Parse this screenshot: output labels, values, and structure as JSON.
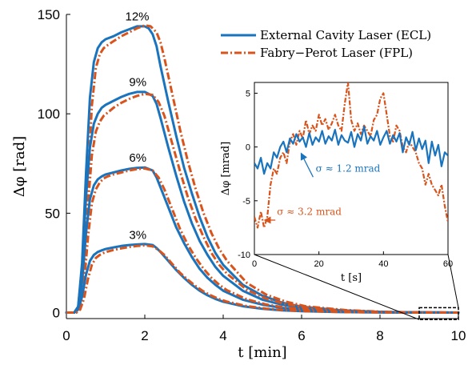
{
  "colors": {
    "ecl": "#1a73bd",
    "fpl": "#d9541c",
    "axis": "#000000",
    "box": "#000000"
  },
  "chart_data": [
    {
      "type": "line",
      "xlabel": "t [min]",
      "ylabel": "Δφ [rad]",
      "xlim": [
        0,
        10
      ],
      "ylim": [
        -3,
        150
      ],
      "xticks": [
        0,
        2,
        4,
        6,
        8,
        10
      ],
      "yticks": [
        0,
        50,
        100,
        150
      ],
      "grid": false,
      "legend_position": "top-right",
      "legend": [
        {
          "name": "External Cavity Laser (ECL)",
          "style": "solid",
          "color": "#1a73bd"
        },
        {
          "name": "Fabry−Perot Laser (FPL)",
          "style": "dash-dot",
          "color": "#d9541c"
        }
      ],
      "annotations": [
        {
          "text": "12%",
          "x": 1.5,
          "y": 147
        },
        {
          "text": "9%",
          "x": 1.6,
          "y": 114
        },
        {
          "text": "6%",
          "x": 1.6,
          "y": 76
        },
        {
          "text": "3%",
          "x": 1.6,
          "y": 37
        }
      ],
      "series": [
        {
          "laser": "ECL",
          "concentration": "12%",
          "x": [
            0,
            0.2,
            0.3,
            0.4,
            0.5,
            0.6,
            0.7,
            0.8,
            0.9,
            1.0,
            1.2,
            1.4,
            1.6,
            1.8,
            2.0,
            2.1,
            2.2,
            2.3,
            2.4,
            2.6,
            2.8,
            3.0,
            3.2,
            3.4,
            3.6,
            3.8,
            4.0,
            4.5,
            5.0,
            5.5,
            6.0,
            7.0,
            8.0,
            9.0,
            10.0
          ],
          "y": [
            0,
            0,
            3,
            25,
            70,
            108,
            126,
            133,
            136,
            137.5,
            139,
            141,
            142.5,
            144,
            144,
            143,
            140,
            134,
            124,
            106,
            89,
            73,
            60,
            48,
            38,
            30,
            24,
            14,
            8.5,
            5,
            3,
            1.2,
            0.4,
            0.1,
            0
          ]
        },
        {
          "laser": "FPL",
          "concentration": "12%",
          "x": [
            0,
            0.25,
            0.35,
            0.45,
            0.55,
            0.65,
            0.75,
            0.85,
            0.95,
            1.05,
            1.2,
            1.4,
            1.6,
            1.8,
            2.0,
            2.15,
            2.3,
            2.4,
            2.5,
            2.7,
            2.9,
            3.1,
            3.3,
            3.5,
            3.7,
            3.9,
            4.1,
            4.6,
            5.1,
            5.6,
            6.1,
            7.1,
            8.1,
            9.1,
            10.0
          ],
          "y": [
            0,
            0,
            3,
            22,
            65,
            104,
            123,
            130,
            133,
            134.5,
            136.5,
            139,
            141,
            143,
            144.5,
            144,
            141,
            136,
            128,
            110,
            92,
            76,
            62,
            50,
            40,
            32,
            26,
            15,
            9,
            5.5,
            3.2,
            1.3,
            0.4,
            0.1,
            0
          ]
        },
        {
          "laser": "ECL",
          "concentration": "9%",
          "x": [
            0,
            0.2,
            0.3,
            0.4,
            0.5,
            0.6,
            0.7,
            0.8,
            0.9,
            1.0,
            1.2,
            1.4,
            1.6,
            1.8,
            2.0,
            2.2,
            2.3,
            2.4,
            2.6,
            2.8,
            3.0,
            3.2,
            3.4,
            3.6,
            3.8,
            4.0,
            4.5,
            5.0,
            5.5,
            6.0,
            7.0,
            8.0,
            9.0,
            10.0
          ],
          "y": [
            0,
            0,
            3,
            22,
            58,
            83,
            95,
            100,
            103,
            104.5,
            106.5,
            108.5,
            110,
            111,
            111,
            109,
            105,
            98,
            83,
            69,
            56,
            45,
            36,
            29,
            23,
            18.5,
            11,
            6.5,
            4,
            2.4,
            0.9,
            0.3,
            0.1,
            0
          ]
        },
        {
          "laser": "FPL",
          "concentration": "9%",
          "x": [
            0,
            0.25,
            0.35,
            0.45,
            0.55,
            0.65,
            0.75,
            0.85,
            0.95,
            1.05,
            1.2,
            1.4,
            1.6,
            1.8,
            2.0,
            2.2,
            2.35,
            2.5,
            2.7,
            2.9,
            3.1,
            3.3,
            3.5,
            3.7,
            3.9,
            4.1,
            4.6,
            5.1,
            5.6,
            6.1,
            7.1,
            8.1,
            9.1,
            10.0
          ],
          "y": [
            0,
            0,
            3,
            20,
            54,
            79,
            91,
            96,
            99,
            100.5,
            103,
            105.5,
            107.5,
            109,
            110,
            109.5,
            106,
            99,
            85,
            71,
            58,
            47,
            38,
            30,
            24,
            19.5,
            11.5,
            7,
            4.3,
            2.6,
            1,
            0.3,
            0.1,
            0
          ]
        },
        {
          "laser": "ECL",
          "concentration": "6%",
          "x": [
            0,
            0.2,
            0.3,
            0.4,
            0.5,
            0.6,
            0.7,
            0.8,
            0.9,
            1.0,
            1.2,
            1.4,
            1.6,
            1.8,
            2.0,
            2.2,
            2.3,
            2.4,
            2.6,
            2.8,
            3.0,
            3.2,
            3.4,
            3.6,
            3.8,
            4.0,
            4.5,
            5.0,
            5.5,
            6.0,
            7.0,
            8.0,
            9.0,
            10.0
          ],
          "y": [
            0,
            0,
            2,
            15,
            40,
            57,
            64,
            67,
            68.5,
            69.5,
            70.5,
            71.5,
            72.3,
            72.8,
            73,
            71.5,
            68,
            63,
            53,
            43,
            35,
            28,
            22,
            17.5,
            14,
            11,
            6.5,
            4,
            2.4,
            1.5,
            0.6,
            0.2,
            0.05,
            0
          ]
        },
        {
          "laser": "FPL",
          "concentration": "6%",
          "x": [
            0,
            0.25,
            0.35,
            0.45,
            0.55,
            0.65,
            0.75,
            0.85,
            0.95,
            1.05,
            1.2,
            1.4,
            1.6,
            1.8,
            2.0,
            2.2,
            2.35,
            2.5,
            2.7,
            2.9,
            3.1,
            3.3,
            3.5,
            3.7,
            3.9,
            4.1,
            4.6,
            5.1,
            5.6,
            6.1,
            7.1,
            8.1,
            9.1,
            10.0
          ],
          "y": [
            0,
            0,
            2,
            14,
            38,
            55,
            62,
            65.5,
            67.5,
            68.5,
            69.5,
            70.5,
            71.5,
            72.2,
            72.5,
            71.5,
            68,
            62,
            52,
            42,
            34,
            27.5,
            22,
            17.5,
            14,
            11.2,
            6.7,
            4.1,
            2.5,
            1.5,
            0.6,
            0.2,
            0.05,
            0
          ]
        },
        {
          "laser": "ECL",
          "concentration": "3%",
          "x": [
            0,
            0.2,
            0.3,
            0.4,
            0.5,
            0.6,
            0.7,
            0.8,
            0.9,
            1.0,
            1.2,
            1.4,
            1.6,
            1.8,
            2.0,
            2.2,
            2.3,
            2.4,
            2.6,
            2.8,
            3.0,
            3.2,
            3.4,
            3.6,
            3.8,
            4.0,
            4.5,
            5.0,
            5.5,
            6.0,
            7.0,
            8.0,
            9.0,
            10.0
          ],
          "y": [
            0,
            0,
            1.5,
            8,
            19,
            26,
            29,
            30.5,
            31.3,
            32,
            32.8,
            33.5,
            34,
            34.3,
            34.5,
            34,
            32.5,
            30.5,
            26,
            21.5,
            17.5,
            14,
            11,
            8.7,
            6.9,
            5.5,
            3.2,
            1.9,
            1.1,
            0.7,
            0.25,
            0.08,
            0.02,
            0
          ]
        },
        {
          "laser": "FPL",
          "concentration": "3%",
          "x": [
            0,
            0.25,
            0.35,
            0.45,
            0.55,
            0.65,
            0.75,
            0.85,
            0.95,
            1.05,
            1.2,
            1.4,
            1.6,
            1.8,
            2.0,
            2.2,
            2.35,
            2.5,
            2.7,
            2.9,
            3.1,
            3.3,
            3.5,
            3.7,
            3.9,
            4.1,
            4.6,
            5.1,
            5.6,
            6.1,
            7.1,
            8.1,
            9.1,
            10.0
          ],
          "y": [
            0,
            0,
            1.5,
            7,
            17,
            24,
            27.5,
            29,
            30,
            30.7,
            31.5,
            32.3,
            33,
            33.5,
            33.8,
            33.3,
            31.5,
            29,
            24.5,
            20,
            16.5,
            13.3,
            10.6,
            8.5,
            6.8,
            5.5,
            3.3,
            2,
            1.2,
            0.75,
            0.28,
            0.09,
            0.02,
            0
          ]
        }
      ]
    },
    {
      "type": "line",
      "inset": true,
      "xlabel": "t [s]",
      "ylabel": "Δφ [mrad]",
      "xlim": [
        0,
        60
      ],
      "ylim": [
        -10,
        6
      ],
      "xticks": [
        0,
        20,
        40,
        60
      ],
      "yticks": [
        -10,
        -5,
        0,
        5
      ],
      "grid": false,
      "annotations": [
        {
          "text": "σ ≈ 1.2 mrad",
          "color": "#1a73bd",
          "x": 19,
          "y": -2.3
        },
        {
          "text": "σ ≈ 3.2 mrad",
          "color": "#d9541c",
          "x": 7,
          "y": -6.4
        }
      ],
      "series": [
        {
          "laser": "ECL",
          "x": [
            0,
            1,
            2,
            3,
            4,
            5,
            6,
            7,
            8,
            9,
            10,
            11,
            12,
            13,
            14,
            15,
            16,
            17,
            18,
            19,
            20,
            21,
            22,
            23,
            24,
            25,
            26,
            27,
            28,
            29,
            30,
            31,
            32,
            33,
            34,
            35,
            36,
            37,
            38,
            39,
            40,
            41,
            42,
            43,
            44,
            45,
            46,
            47,
            48,
            49,
            50,
            51,
            52,
            53,
            54,
            55,
            56,
            57,
            58,
            59,
            60
          ],
          "y": [
            -1.5,
            -2,
            -1,
            -2.5,
            -1.5,
            -2,
            -0.5,
            -1,
            0,
            0.5,
            -0.5,
            0.8,
            0.3,
            1.2,
            0.5,
            0.9,
            0,
            1.3,
            0.2,
            0.9,
            0.5,
            1.5,
            0.3,
            1,
            0.6,
            1.6,
            0.2,
            1.1,
            0.6,
            0.4,
            1.4,
            0,
            1.2,
            0.6,
            1.9,
            0.3,
            1,
            0.6,
            1.5,
            0.2,
            0.9,
            1.5,
            0.3,
            1.1,
            0.5,
            1.3,
            -0.5,
            0.9,
            0.2,
            1.4,
            -0.3,
            0.8,
            -0.2,
            0.6,
            -1.5,
            0.5,
            -0.8,
            0.2,
            -1.8,
            -0.5,
            -0.8
          ]
        },
        {
          "laser": "FPL",
          "x": [
            0,
            1,
            2,
            3,
            4,
            5,
            6,
            7,
            8,
            9,
            10,
            11,
            12,
            13,
            14,
            15,
            16,
            17,
            18,
            19,
            20,
            21,
            22,
            23,
            24,
            25,
            26,
            27,
            28,
            29,
            30,
            31,
            32,
            33,
            34,
            35,
            36,
            37,
            38,
            39,
            40,
            41,
            42,
            43,
            44,
            45,
            46,
            47,
            48,
            49,
            50,
            51,
            52,
            53,
            54,
            55,
            56,
            57,
            58,
            59,
            60
          ],
          "y": [
            -6.5,
            -7.5,
            -6,
            -7.5,
            -6.5,
            -3.5,
            -2,
            -2.5,
            -1,
            -0.5,
            -1.5,
            0.5,
            1.2,
            0.2,
            1.5,
            0.8,
            2.5,
            1.2,
            2,
            1.5,
            3,
            2,
            2.6,
            1.6,
            2.2,
            3,
            2,
            1.5,
            4,
            6,
            2.5,
            1.5,
            2.2,
            1.2,
            2,
            1.5,
            1,
            2.5,
            3,
            4.5,
            5,
            3,
            1,
            0.5,
            2,
            1.5,
            0,
            -0.5,
            0.5,
            0,
            -0.5,
            -1.5,
            -2,
            -3.5,
            -2.5,
            -3.5,
            -4,
            -4.5,
            -3.5,
            -5.5,
            -7
          ]
        }
      ]
    }
  ]
}
